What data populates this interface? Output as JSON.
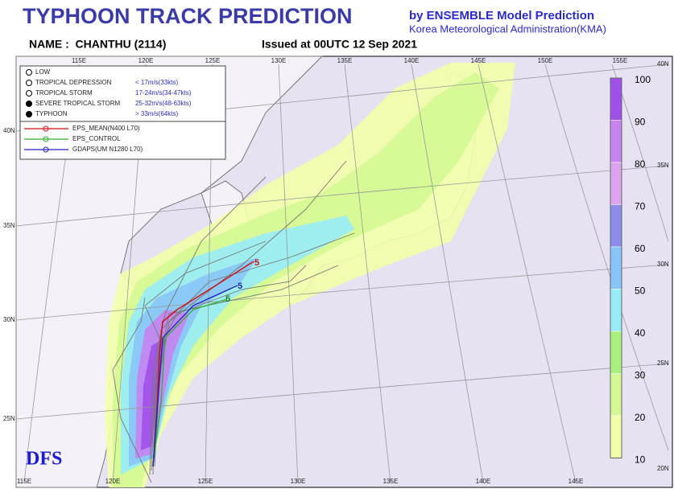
{
  "header": {
    "title": "TYPHOON TRACK PREDICTION",
    "model": "by ENSEMBLE Model Prediction",
    "agency": "Korea Meteorological Administration(KMA)",
    "name": "NAME :  CHANTHU (2114)",
    "issued": "Issued at 00UTC 12 Sep 2021"
  },
  "map": {
    "top_lon_labels": [
      "115E",
      "120E",
      "125E",
      "130E",
      "135E",
      "140E",
      "145E",
      "150E",
      "155E"
    ],
    "bottom_lon_labels": [
      "115E",
      "120E",
      "125E",
      "130E",
      "135E",
      "140E",
      "145E"
    ],
    "left_lat_labels": [
      "40N",
      "35N",
      "30N",
      "25N"
    ],
    "right_lat_labels": [
      "40N",
      "35N",
      "30N",
      "25N",
      "20N"
    ],
    "watermark": "DFS",
    "track_labels": [
      "5",
      "5",
      "5"
    ]
  },
  "legend": {
    "intensity": [
      {
        "label": "LOW"
      },
      {
        "label": "TROPICAL DEPRESSION",
        "criterion": "< 17m/s(33kts)"
      },
      {
        "label": "TROPICAL STORM",
        "criterion": "17-24m/s(34-47kts)"
      },
      {
        "label": "SEVERE TROPICAL STORM",
        "criterion": "25-32m/s(48-63kts)"
      },
      {
        "label": "TYPHOON",
        "criterion": "> 33m/s(64kts)"
      }
    ],
    "models": [
      {
        "label": "EPS_MEAN(N400 L70)",
        "color": "#d01010"
      },
      {
        "label": "EPS_CONTROL",
        "color": "#30b030"
      },
      {
        "label": "GDAPS(UM N1280 L70)",
        "color": "#2020c0"
      }
    ]
  },
  "colorbar": {
    "labels": [
      "100",
      "90",
      "80",
      "70",
      "60",
      "50",
      "40",
      "30",
      "20",
      "10"
    ],
    "colors": [
      "#a050e8",
      "#c584f0",
      "#dca4ee",
      "#8c8ce8",
      "#88c4f6",
      "#98ecf8",
      "#aaf07c",
      "#d4f894",
      "#f2ffa8"
    ]
  }
}
